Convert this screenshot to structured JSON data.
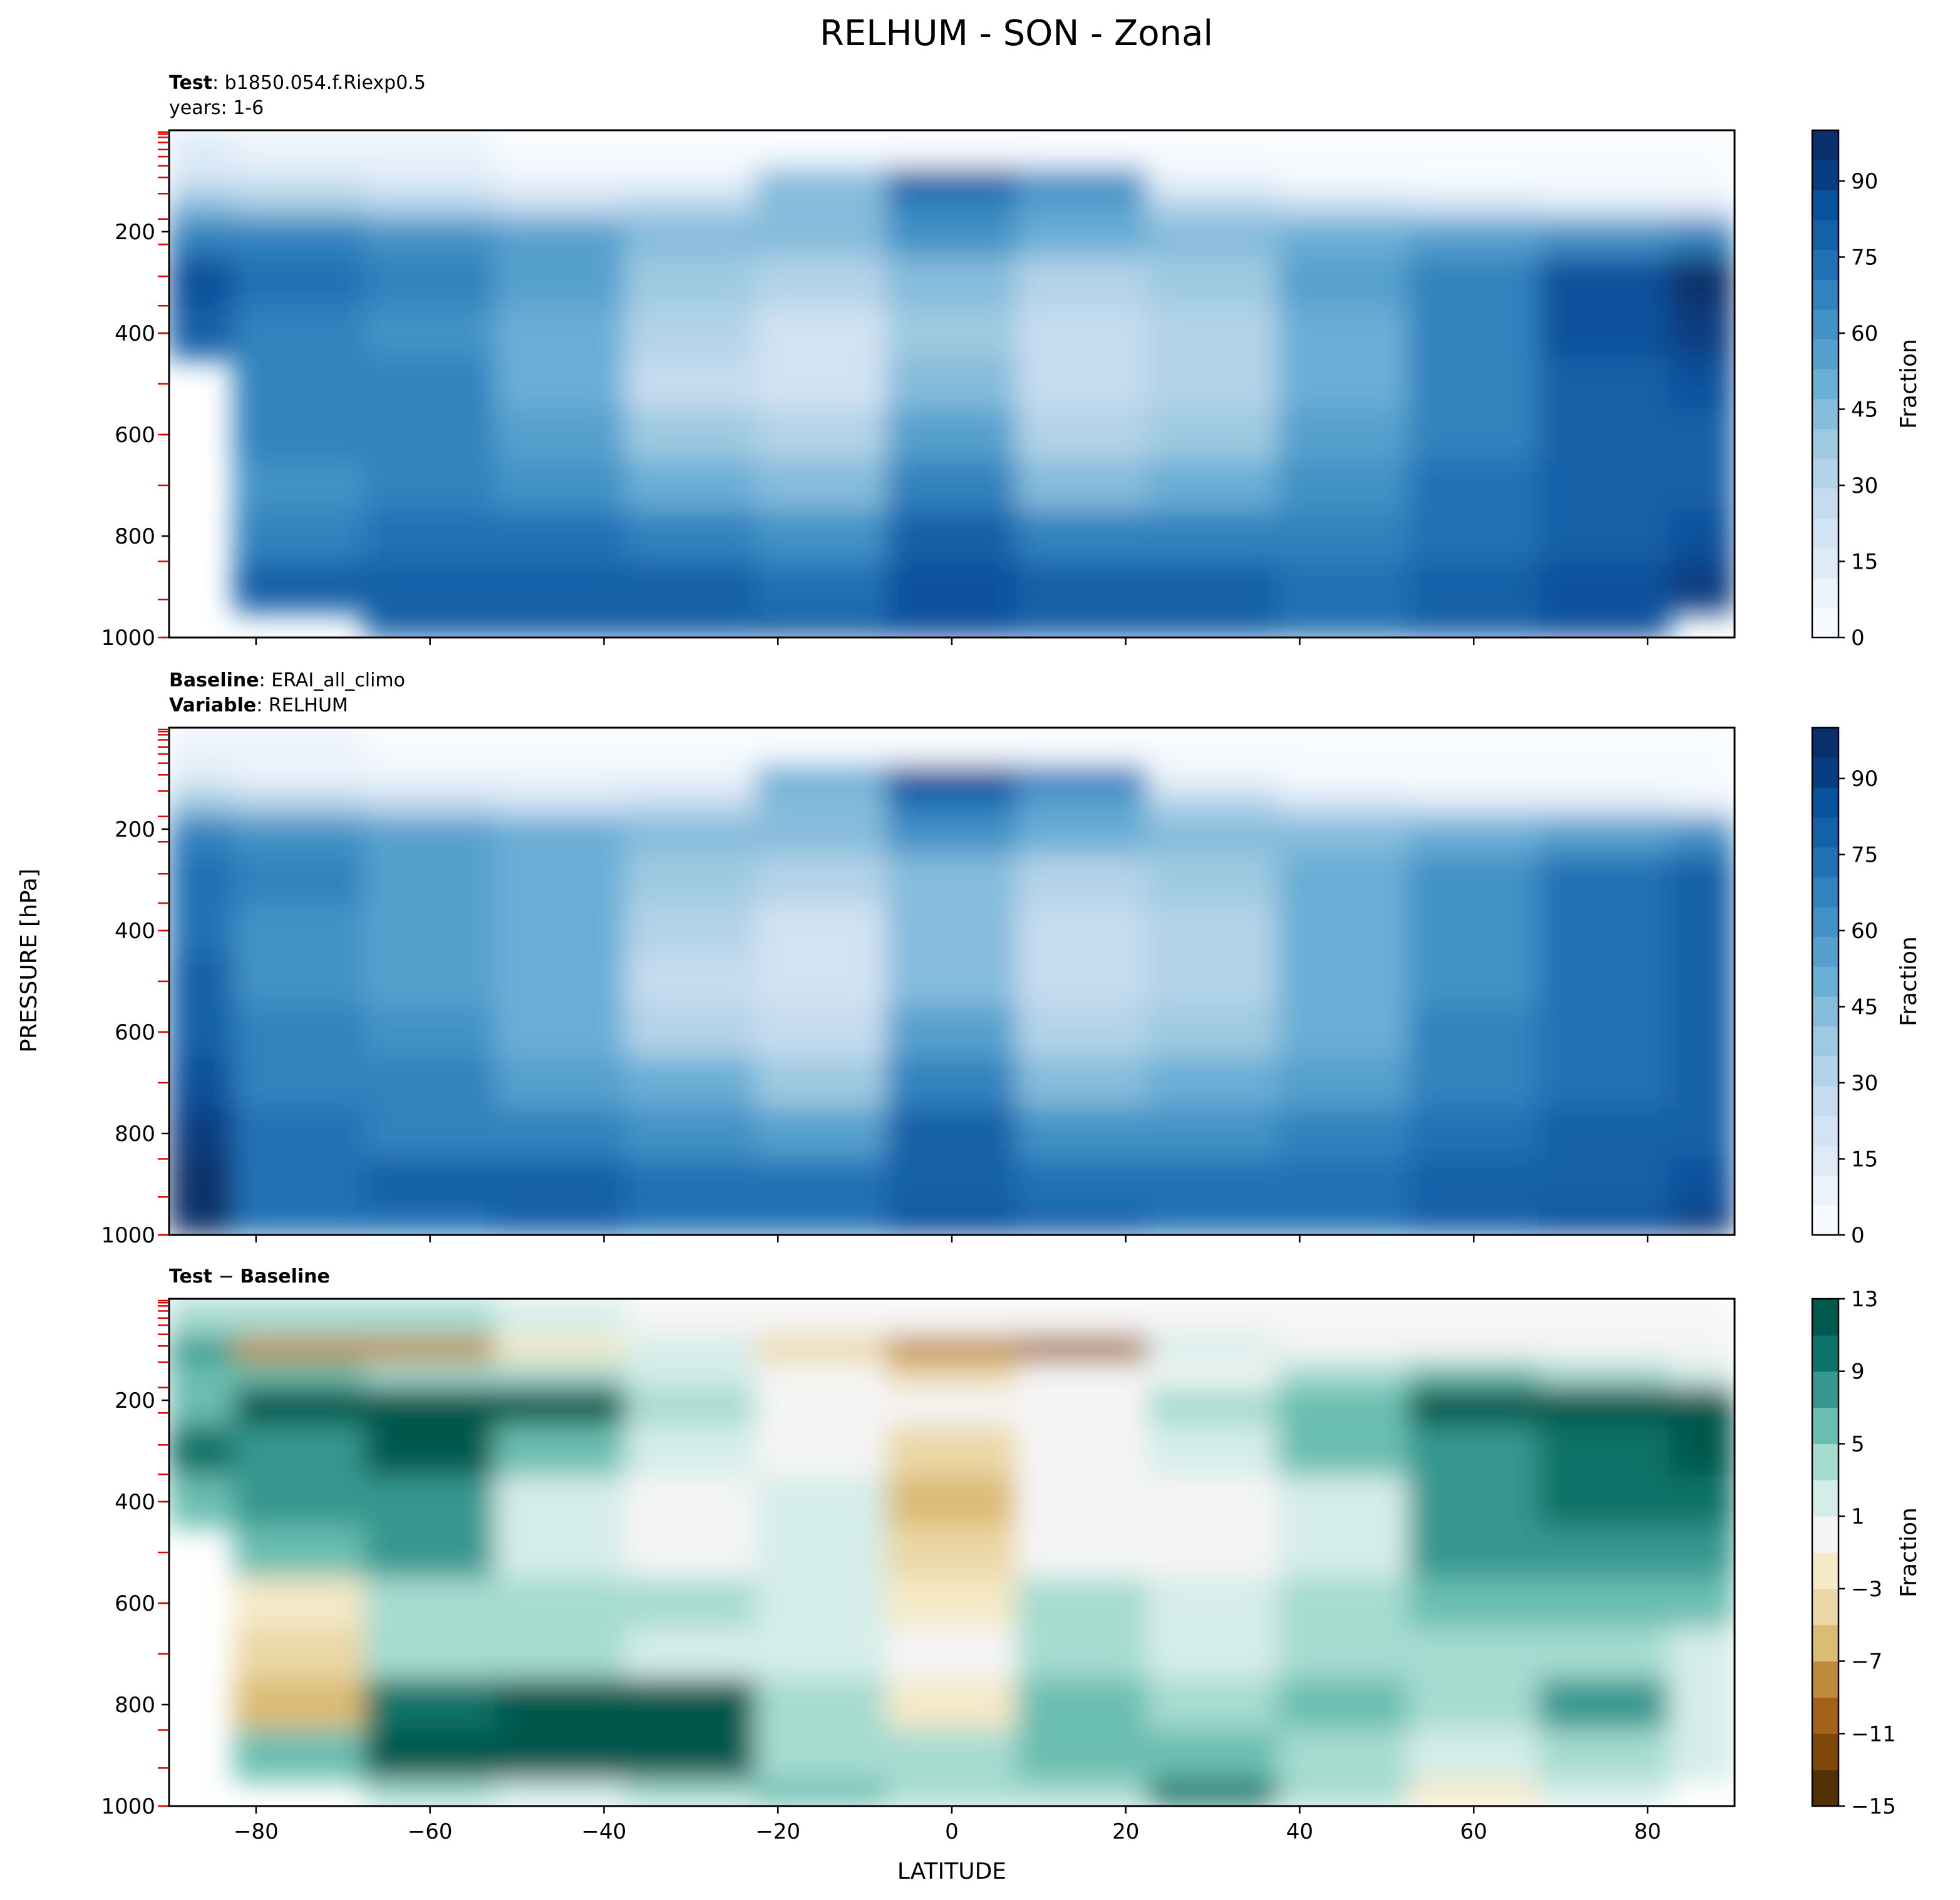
{
  "figure": {
    "title": "RELHUM - SON - Zonal",
    "shared_ylabel": "PRESSURE [hPa]",
    "shared_xlabel": "LATITUDE"
  },
  "panels": {
    "test": {
      "line1_bold": "Test",
      "line1_text": ": b1850.054.f.Riexp0.5",
      "line2_text": "years: 1-6"
    },
    "baseline": {
      "line1_bold": "Baseline",
      "line1_text": ": ERAI_all_climo",
      "line2_bold": "Variable",
      "line2_text": ": RELHUM"
    },
    "diff": {
      "line1_bold": "Test",
      "line1_text": " − ",
      "line1_bold2": "Baseline"
    }
  },
  "axes": {
    "x_ticks": [
      -80,
      -60,
      -40,
      -20,
      0,
      20,
      40,
      60,
      80
    ],
    "x_tick_labels": [
      "−80",
      "−60",
      "−40",
      "−20",
      "0",
      "20",
      "40",
      "60",
      "80"
    ],
    "y_ticks": [
      200,
      400,
      600,
      800,
      1000
    ],
    "y_tick_labels": [
      "200",
      "400",
      "600",
      "800",
      "1000"
    ],
    "xlim": [
      -90,
      90
    ],
    "ylim": [
      1000,
      0
    ],
    "level_marks_hPa": [
      3.6,
      7.6,
      14,
      24,
      38,
      52,
      70,
      93,
      125,
      175,
      225,
      288,
      346,
      400,
      500,
      600,
      700,
      850,
      925,
      1000
    ]
  },
  "colorbars": {
    "field": {
      "label": "Fraction",
      "tick_values": [
        0,
        15,
        30,
        45,
        60,
        75,
        90
      ],
      "tick_labels": [
        "0",
        "15",
        "30",
        "45",
        "60",
        "75",
        "90"
      ],
      "min": 0,
      "max": 100,
      "colors": [
        "#f7fbff",
        "#ebf3fb",
        "#deebf7",
        "#d2e3f3",
        "#c6dbef",
        "#b3d3e8",
        "#9ecae1",
        "#85bcdc",
        "#6baed6",
        "#57a0ce",
        "#4292c6",
        "#3282be",
        "#2171b5",
        "#1461a8",
        "#08519c",
        "#083e81",
        "#08306b"
      ]
    },
    "diff": {
      "label": "Fraction",
      "tick_values": [
        13,
        9,
        5,
        1,
        -3,
        -7,
        -11,
        -15
      ],
      "tick_labels": [
        "13",
        "9",
        "5",
        "1",
        "−3",
        "−7",
        "−11",
        "−15"
      ],
      "min": -15,
      "max": 13,
      "colors": [
        "#543005",
        "#7f470a",
        "#a26318",
        "#c08a3b",
        "#dbbc75",
        "#ebd7a5",
        "#f5e9c8",
        "#f5f5f5",
        "#d5ede9",
        "#a6dbd0",
        "#6abeb1",
        "#35978f",
        "#0d7268",
        "#01594e"
      ]
    }
  },
  "chart_data": [
    {
      "type": "heatmap",
      "panel": "test",
      "x": [
        -90,
        -75,
        -60,
        -45,
        -30,
        -15,
        0,
        15,
        30,
        45,
        60,
        75,
        90
      ],
      "y": [
        50,
        100,
        150,
        200,
        300,
        400,
        500,
        600,
        700,
        800,
        900,
        1000
      ],
      "z": [
        [
          12,
          10,
          8,
          5,
          3,
          3,
          3,
          3,
          3,
          2,
          2,
          2,
          2
        ],
        [
          22,
          18,
          14,
          10,
          10,
          45,
          80,
          60,
          10,
          5,
          3,
          3,
          3
        ],
        [
          45,
          40,
          32,
          25,
          30,
          45,
          70,
          55,
          35,
          25,
          20,
          15,
          12
        ],
        [
          70,
          65,
          60,
          55,
          45,
          45,
          60,
          50,
          45,
          50,
          55,
          60,
          70
        ],
        [
          85,
          72,
          65,
          55,
          40,
          30,
          45,
          35,
          40,
          55,
          70,
          85,
          95
        ],
        [
          80,
          70,
          62,
          50,
          30,
          20,
          40,
          25,
          30,
          50,
          70,
          85,
          90
        ],
        [
          null,
          68,
          65,
          50,
          28,
          20,
          45,
          25,
          30,
          50,
          70,
          80,
          85
        ],
        [
          null,
          65,
          65,
          55,
          38,
          30,
          55,
          35,
          40,
          55,
          70,
          78,
          80
        ],
        [
          null,
          60,
          68,
          62,
          50,
          42,
          65,
          45,
          50,
          62,
          72,
          78,
          82
        ],
        [
          null,
          65,
          75,
          72,
          65,
          60,
          80,
          65,
          65,
          70,
          75,
          80,
          85
        ],
        [
          null,
          78,
          82,
          80,
          78,
          75,
          85,
          80,
          78,
          75,
          80,
          85,
          90
        ],
        [
          null,
          null,
          80,
          80,
          78,
          78,
          88,
          82,
          78,
          75,
          78,
          88,
          null
        ]
      ],
      "colorbar_label": "Fraction",
      "xlim": [
        -90,
        90
      ],
      "ylim": [
        1000,
        0
      ]
    },
    {
      "type": "heatmap",
      "panel": "baseline",
      "x": [
        -90,
        -75,
        -60,
        -45,
        -30,
        -15,
        0,
        15,
        30,
        45,
        60,
        75,
        90
      ],
      "y": [
        50,
        100,
        150,
        200,
        300,
        400,
        500,
        600,
        700,
        800,
        900,
        1000
      ],
      "z": [
        [
          8,
          6,
          5,
          4,
          3,
          3,
          3,
          3,
          3,
          2,
          2,
          2,
          2
        ],
        [
          15,
          10,
          8,
          6,
          8,
          50,
          88,
          70,
          8,
          5,
          3,
          3,
          3
        ],
        [
          40,
          35,
          28,
          22,
          28,
          45,
          75,
          55,
          35,
          22,
          15,
          12,
          10
        ],
        [
          65,
          60,
          55,
          50,
          42,
          45,
          60,
          50,
          42,
          45,
          50,
          55,
          62
        ],
        [
          75,
          65,
          58,
          50,
          38,
          30,
          45,
          35,
          38,
          50,
          62,
          75,
          80
        ],
        [
          75,
          62,
          55,
          48,
          30,
          18,
          42,
          25,
          30,
          48,
          62,
          75,
          80
        ],
        [
          78,
          62,
          58,
          48,
          28,
          18,
          45,
          25,
          30,
          48,
          62,
          72,
          78
        ],
        [
          82,
          65,
          62,
          52,
          35,
          28,
          55,
          32,
          38,
          52,
          65,
          72,
          78
        ],
        [
          88,
          70,
          65,
          58,
          48,
          40,
          65,
          42,
          48,
          58,
          68,
          75,
          80
        ],
        [
          92,
          72,
          70,
          68,
          62,
          58,
          78,
          60,
          62,
          65,
          72,
          78,
          82
        ],
        [
          95,
          75,
          78,
          80,
          75,
          72,
          82,
          75,
          72,
          72,
          78,
          82,
          88
        ],
        [
          95,
          75,
          76,
          78,
          75,
          75,
          85,
          78,
          72,
          72,
          78,
          85,
          90
        ]
      ],
      "colorbar_label": "Fraction",
      "xlim": [
        -90,
        90
      ],
      "ylim": [
        1000,
        0
      ]
    },
    {
      "type": "heatmap",
      "panel": "diff",
      "x": [
        -90,
        -75,
        -60,
        -45,
        -30,
        -15,
        0,
        15,
        30,
        45,
        60,
        75,
        90
      ],
      "y": [
        50,
        100,
        150,
        200,
        300,
        400,
        500,
        600,
        700,
        800,
        900,
        1000
      ],
      "z": [
        [
          4,
          4,
          3,
          1,
          0,
          0,
          0,
          0,
          0,
          0,
          0,
          0,
          0
        ],
        [
          7,
          -9,
          -8,
          -2,
          2,
          -5,
          -8,
          -10,
          2,
          0,
          0,
          0,
          0
        ],
        [
          5,
          5,
          4,
          3,
          2,
          0,
          -5,
          0,
          0,
          3,
          5,
          3,
          2
        ],
        [
          5,
          14,
          14,
          14,
          3,
          0,
          0,
          0,
          3,
          5,
          14,
          14,
          14
        ],
        [
          10,
          8,
          12,
          5,
          2,
          0,
          -4,
          0,
          2,
          5,
          8,
          10,
          15
        ],
        [
          5,
          8,
          7,
          2,
          0,
          2,
          -6,
          0,
          0,
          2,
          8,
          10,
          10
        ],
        [
          null,
          6,
          7,
          2,
          0,
          2,
          -4,
          0,
          0,
          2,
          8,
          8,
          8
        ],
        [
          null,
          -3,
          3,
          3,
          3,
          2,
          -2,
          3,
          2,
          3,
          5,
          6,
          5
        ],
        [
          null,
          -5,
          3,
          4,
          2,
          2,
          0,
          3,
          2,
          4,
          4,
          3,
          2
        ],
        [
          null,
          -7,
          10,
          14,
          14,
          3,
          -2,
          5,
          3,
          5,
          3,
          8,
          2
        ],
        [
          null,
          5,
          14,
          14,
          14,
          3,
          3,
          5,
          5,
          4,
          2,
          3,
          2
        ],
        [
          null,
          null,
          4,
          2,
          3,
          6,
          3,
          4,
          10,
          3,
          -2,
          1,
          null
        ]
      ],
      "colorbar_label": "Fraction",
      "xlim": [
        -90,
        90
      ],
      "ylim": [
        1000,
        0
      ]
    }
  ]
}
